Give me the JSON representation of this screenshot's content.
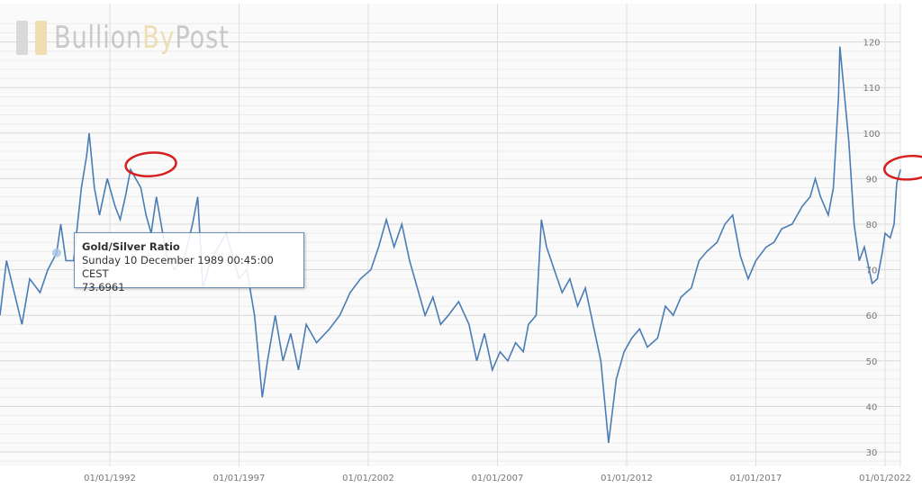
{
  "logo": {
    "part1": "Bullion",
    "part2": "By",
    "part3": "Post"
  },
  "tooltip": {
    "title": "Gold/Silver Ratio",
    "date": "Sunday 10 December 1989 00:45:00 CEST",
    "value": "73.6961"
  },
  "colors": {
    "line": "#4a7db5",
    "annotation": "#d62020",
    "grid": "#e3e3e3"
  },
  "chart_data": {
    "type": "line",
    "title": "",
    "series": [
      {
        "name": "Gold/Silver Ratio",
        "points": [
          [
            1987.75,
            60
          ],
          [
            1988.0,
            72
          ],
          [
            1988.3,
            65
          ],
          [
            1988.6,
            58
          ],
          [
            1988.9,
            68
          ],
          [
            1989.3,
            65
          ],
          [
            1989.6,
            70
          ],
          [
            1989.94,
            73.7
          ],
          [
            1990.1,
            80
          ],
          [
            1990.3,
            72
          ],
          [
            1990.6,
            72
          ],
          [
            1990.9,
            88
          ],
          [
            1991.1,
            95
          ],
          [
            1991.2,
            100
          ],
          [
            1991.4,
            88
          ],
          [
            1991.6,
            82
          ],
          [
            1991.9,
            90
          ],
          [
            1992.2,
            84
          ],
          [
            1992.4,
            81
          ],
          [
            1992.6,
            86
          ],
          [
            1992.8,
            92
          ],
          [
            1993.0,
            90
          ],
          [
            1993.2,
            88
          ],
          [
            1993.4,
            82
          ],
          [
            1993.6,
            78
          ],
          [
            1993.8,
            86
          ],
          [
            1994.2,
            73
          ],
          [
            1994.5,
            70
          ],
          [
            1994.9,
            73
          ],
          [
            1995.2,
            80
          ],
          [
            1995.4,
            86
          ],
          [
            1995.6,
            66
          ],
          [
            1995.9,
            72
          ],
          [
            1996.2,
            75
          ],
          [
            1996.5,
            78
          ],
          [
            1996.8,
            72
          ],
          [
            1997.0,
            68
          ],
          [
            1997.3,
            70
          ],
          [
            1997.6,
            60
          ],
          [
            1997.9,
            42
          ],
          [
            1998.1,
            50
          ],
          [
            1998.4,
            60
          ],
          [
            1998.7,
            50
          ],
          [
            1999.0,
            56
          ],
          [
            1999.3,
            48
          ],
          [
            1999.6,
            58
          ],
          [
            2000.0,
            54
          ],
          [
            2000.5,
            57
          ],
          [
            2000.9,
            60
          ],
          [
            2001.3,
            65
          ],
          [
            2001.7,
            68
          ],
          [
            2002.1,
            70
          ],
          [
            2002.4,
            75
          ],
          [
            2002.7,
            81
          ],
          [
            2003.0,
            75
          ],
          [
            2003.3,
            80
          ],
          [
            2003.6,
            72
          ],
          [
            2003.9,
            66
          ],
          [
            2004.2,
            60
          ],
          [
            2004.5,
            64
          ],
          [
            2004.8,
            58
          ],
          [
            2005.1,
            60
          ],
          [
            2005.5,
            63
          ],
          [
            2005.9,
            58
          ],
          [
            2006.2,
            50
          ],
          [
            2006.5,
            56
          ],
          [
            2006.8,
            48
          ],
          [
            2007.1,
            52
          ],
          [
            2007.4,
            50
          ],
          [
            2007.7,
            54
          ],
          [
            2008.0,
            52
          ],
          [
            2008.2,
            58
          ],
          [
            2008.5,
            60
          ],
          [
            2008.7,
            81
          ],
          [
            2008.9,
            75
          ],
          [
            2009.2,
            70
          ],
          [
            2009.5,
            65
          ],
          [
            2009.8,
            68
          ],
          [
            2010.1,
            62
          ],
          [
            2010.4,
            66
          ],
          [
            2010.7,
            58
          ],
          [
            2011.0,
            50
          ],
          [
            2011.3,
            32
          ],
          [
            2011.6,
            46
          ],
          [
            2011.9,
            52
          ],
          [
            2012.2,
            55
          ],
          [
            2012.5,
            57
          ],
          [
            2012.8,
            53
          ],
          [
            2013.2,
            55
          ],
          [
            2013.5,
            62
          ],
          [
            2013.8,
            60
          ],
          [
            2014.1,
            64
          ],
          [
            2014.5,
            66
          ],
          [
            2014.8,
            72
          ],
          [
            2015.1,
            74
          ],
          [
            2015.5,
            76
          ],
          [
            2015.8,
            80
          ],
          [
            2016.1,
            82
          ],
          [
            2016.4,
            73
          ],
          [
            2016.7,
            68
          ],
          [
            2017.0,
            72
          ],
          [
            2017.4,
            75
          ],
          [
            2017.7,
            76
          ],
          [
            2018.0,
            79
          ],
          [
            2018.4,
            80
          ],
          [
            2018.8,
            84
          ],
          [
            2019.1,
            86
          ],
          [
            2019.3,
            90
          ],
          [
            2019.5,
            86
          ],
          [
            2019.8,
            82
          ],
          [
            2020.0,
            88
          ],
          [
            2020.2,
            108
          ],
          [
            2020.25,
            119
          ],
          [
            2020.4,
            110
          ],
          [
            2020.6,
            98
          ],
          [
            2020.8,
            80
          ],
          [
            2021.0,
            72
          ],
          [
            2021.2,
            75
          ],
          [
            2021.5,
            67
          ],
          [
            2021.7,
            68
          ],
          [
            2021.9,
            74
          ],
          [
            2022.0,
            78
          ],
          [
            2022.2,
            77
          ],
          [
            2022.35,
            80
          ],
          [
            2022.45,
            89
          ],
          [
            2022.6,
            92
          ]
        ]
      }
    ],
    "x_ticks": [
      {
        "year": 1992,
        "label": "01/01/1992"
      },
      {
        "year": 1997,
        "label": "01/01/1997"
      },
      {
        "year": 2002,
        "label": "01/01/2002"
      },
      {
        "year": 2007,
        "label": "01/01/2007"
      },
      {
        "year": 2012,
        "label": "01/01/2012"
      },
      {
        "year": 2017,
        "label": "01/01/2017"
      },
      {
        "year": 2022,
        "label": "01/01/2022"
      }
    ],
    "y_ticks": [
      30,
      40,
      50,
      60,
      70,
      80,
      90,
      100,
      110,
      120
    ],
    "xlim": [
      1987.75,
      2022.6
    ],
    "ylim": [
      28,
      125
    ],
    "grid": true,
    "legend": "none",
    "annotations": [
      {
        "type": "red-circle",
        "year": 1993,
        "value": 92
      },
      {
        "type": "red-circle",
        "year": 2022.6,
        "value": 92
      }
    ]
  }
}
